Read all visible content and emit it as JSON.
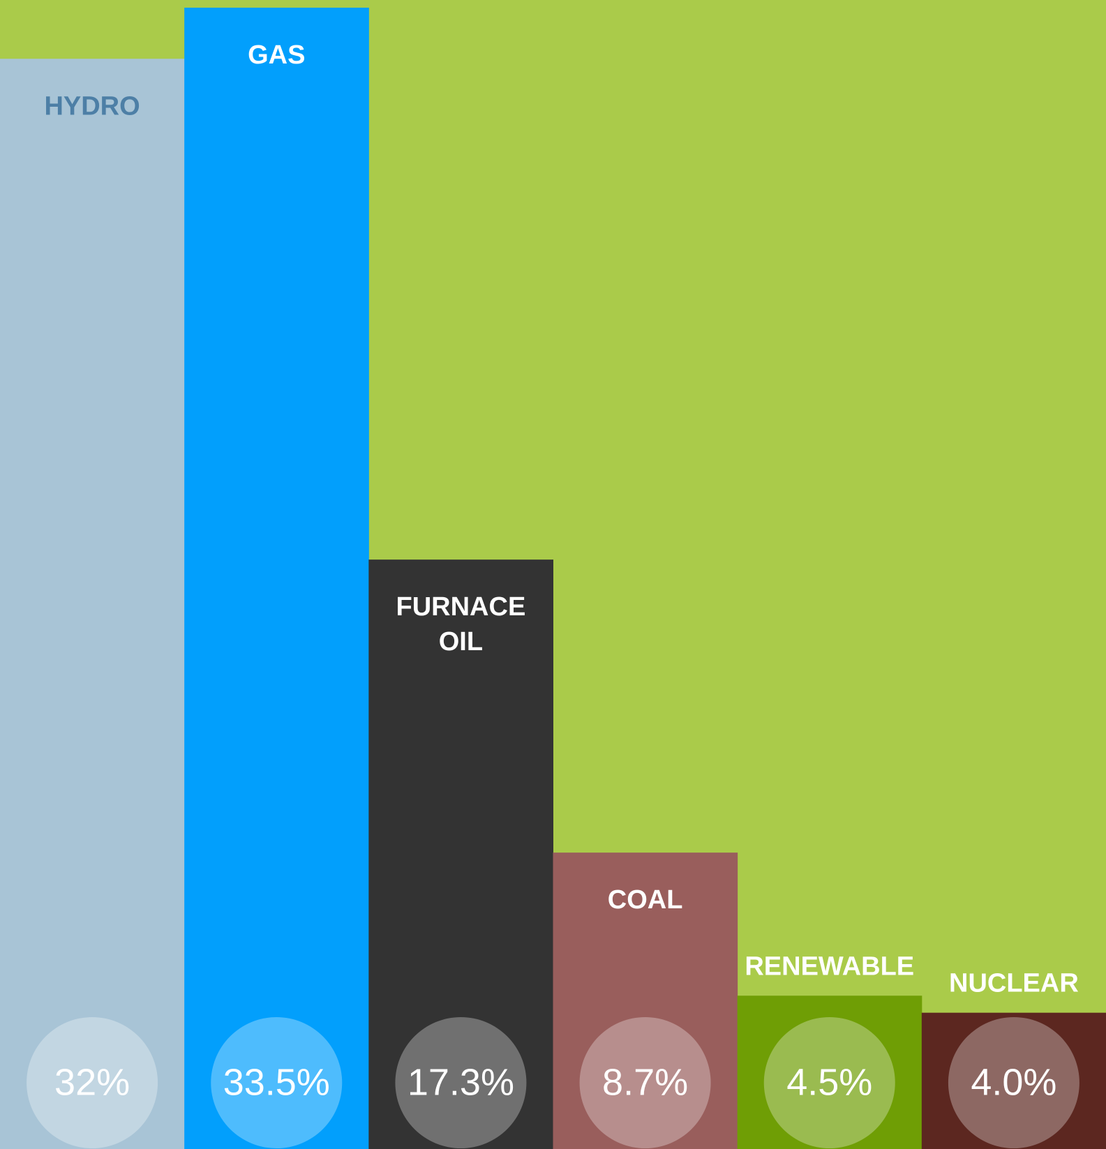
{
  "chart_data": {
    "type": "bar",
    "categories": [
      "HYDRO",
      "GAS",
      "FURNACE OIL",
      "COAL",
      "RENEWABLE",
      "NUCLEAR"
    ],
    "values": [
      32,
      33.5,
      17.3,
      8.7,
      4.5,
      4.0
    ],
    "value_labels": [
      "32%",
      "33.5%",
      "17.3%",
      "8.7%",
      "4.5%",
      "4.0%"
    ],
    "colors": [
      "#a8c4d6",
      "#029ffc",
      "#333333",
      "#995e5c",
      "#6f9e05",
      "#5c2720"
    ],
    "label_colors": [
      "#4d7fa6",
      "#ffffff",
      "#ffffff",
      "#ffffff",
      "#ffffff",
      "#ffffff"
    ],
    "background": "#aacb4a"
  }
}
